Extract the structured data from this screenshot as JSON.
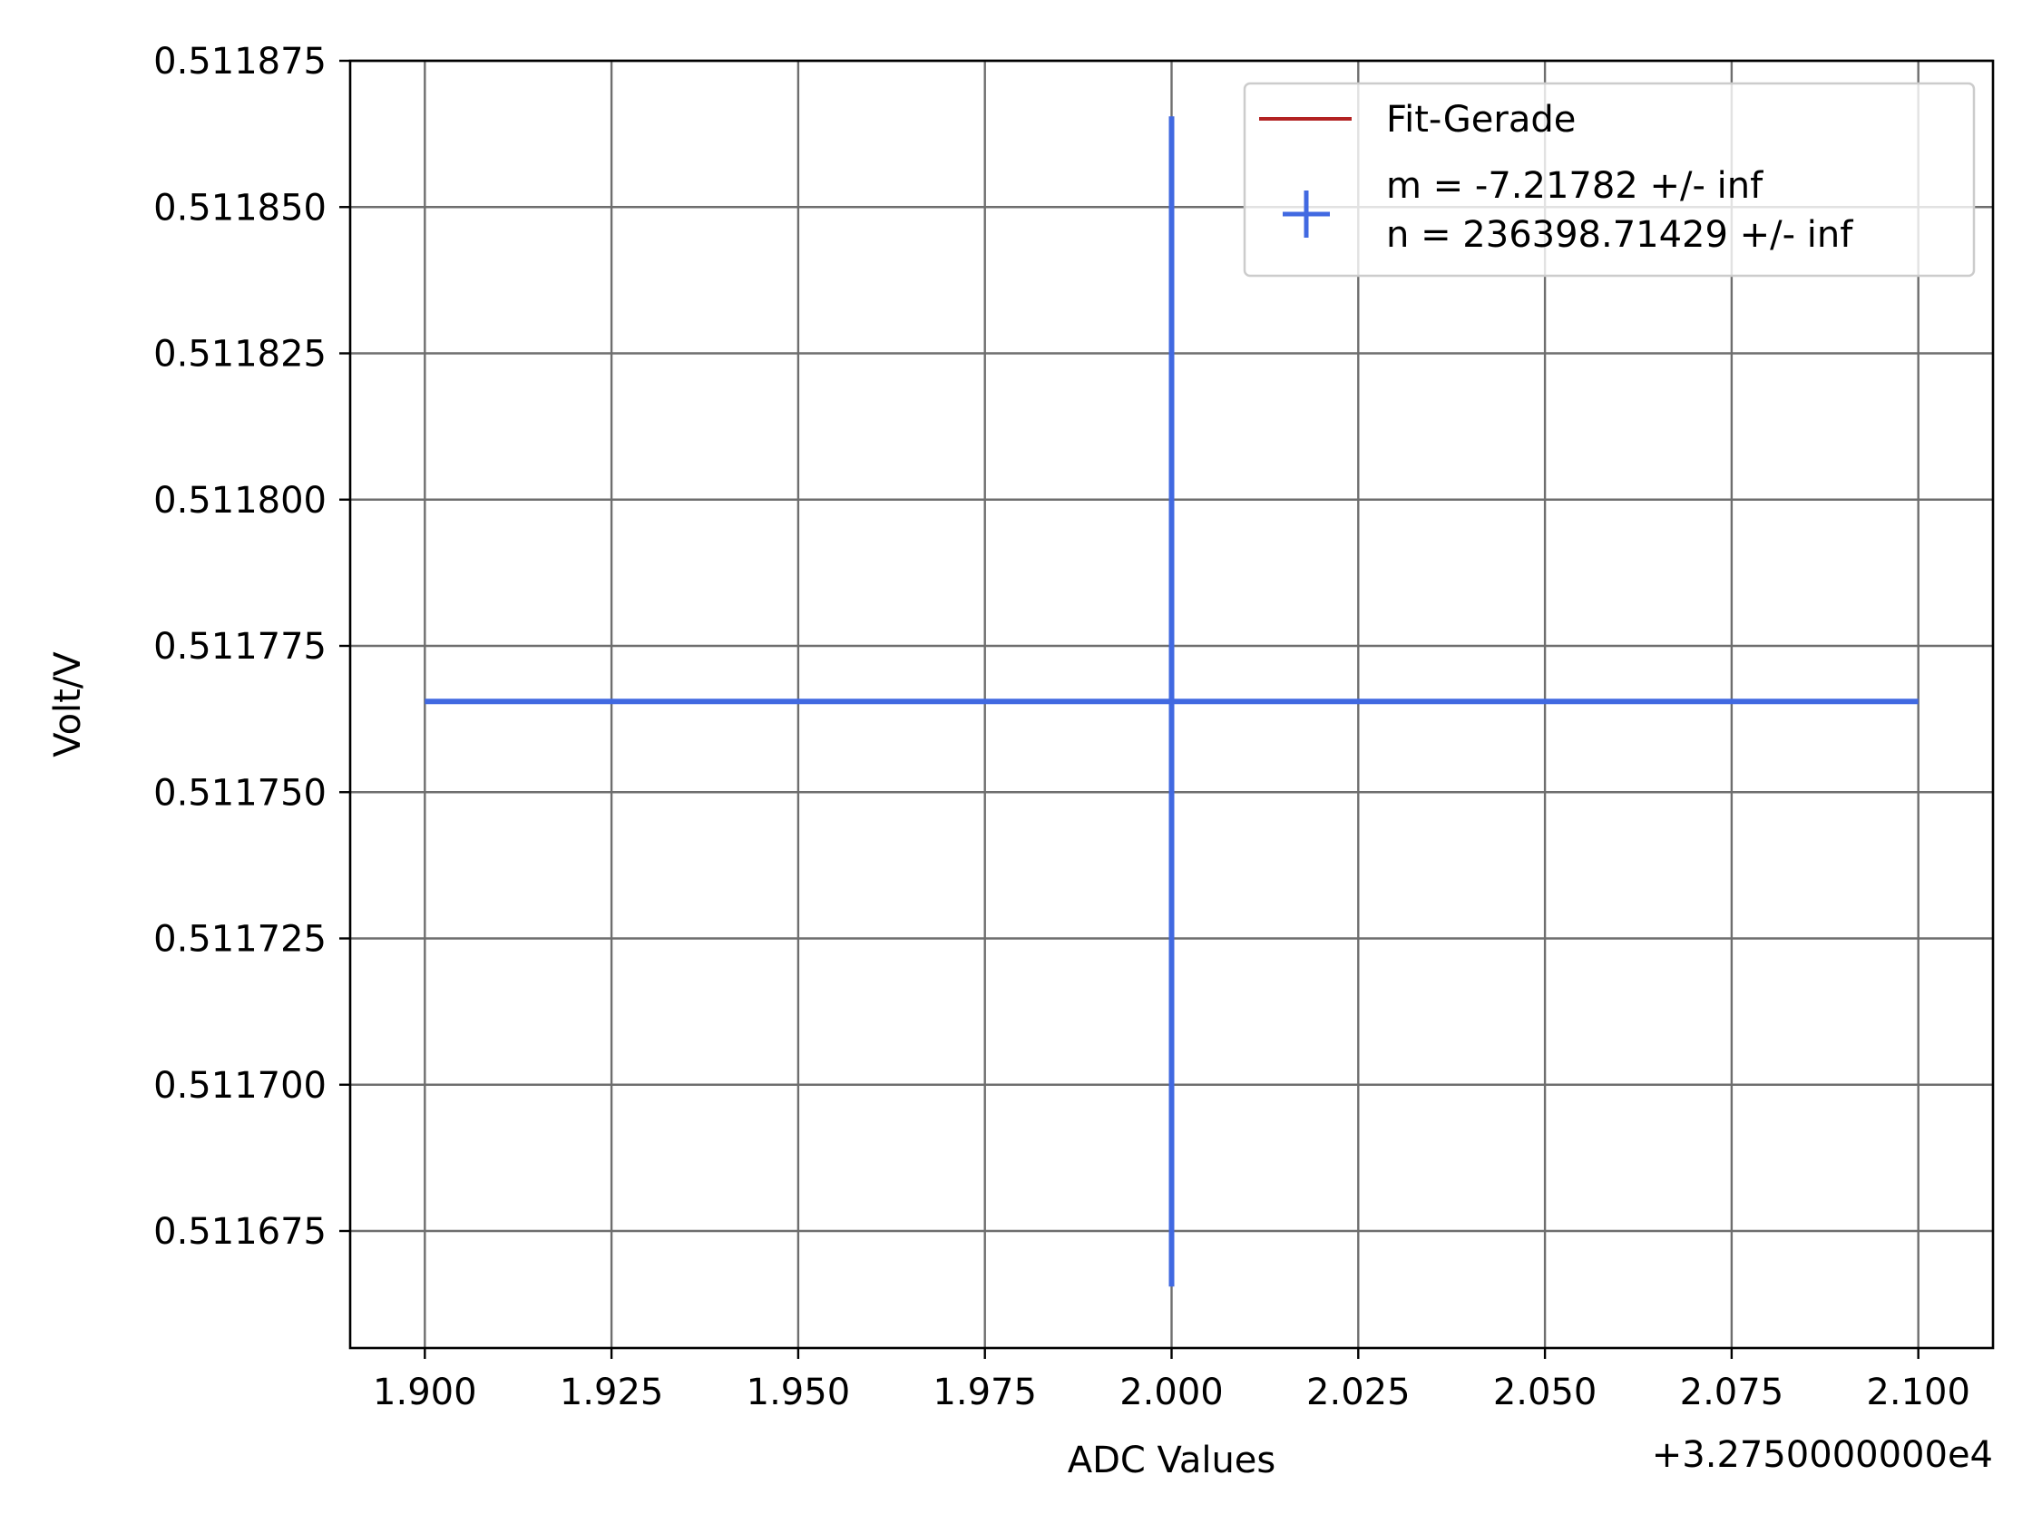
{
  "chart_data": {
    "type": "scatter",
    "xlabel": "ADC Values",
    "ylabel": "Volt/V",
    "x_offset_label": "+3.2750000000e4",
    "xlim": [
      1.89,
      2.11
    ],
    "ylim": [
      0.511655,
      0.511875
    ],
    "x_ticks": [
      1.9,
      1.925,
      1.95,
      1.975,
      2.0,
      2.025,
      2.05,
      2.075,
      2.1
    ],
    "x_tick_labels": [
      "1.900",
      "1.925",
      "1.950",
      "1.975",
      "2.000",
      "2.025",
      "2.050",
      "2.075",
      "2.100"
    ],
    "y_ticks": [
      0.511675,
      0.5117,
      0.511725,
      0.51175,
      0.511775,
      0.5118,
      0.511825,
      0.51185,
      0.511875
    ],
    "y_tick_labels": [
      "0.511675",
      "0.511700",
      "0.511725",
      "0.511750",
      "0.511775",
      "0.511800",
      "0.511825",
      "0.511850",
      "0.511875"
    ],
    "grid": true,
    "legend_position": "top-right",
    "series": [
      {
        "name": "Fit-Gerade",
        "kind": "line",
        "color": "#b22222",
        "x": [],
        "y": []
      },
      {
        "name": "m = -7.21782 +/- inf\nn = 236398.71429 +/- inf",
        "name_lines": [
          "m = -7.21782 +/- inf",
          "n = 236398.71429 +/- inf"
        ],
        "kind": "errorbar",
        "color": "#4169e1",
        "points": [
          {
            "x": 2.0,
            "y": 0.5117655,
            "xerr": 0.1,
            "yerr": 0.0001
          }
        ]
      }
    ]
  }
}
